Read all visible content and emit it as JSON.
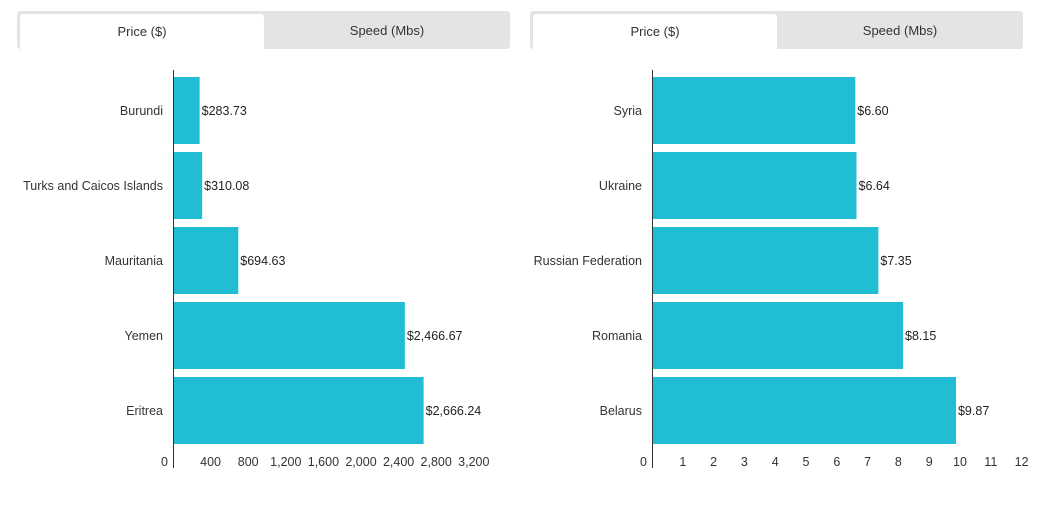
{
  "colors": {
    "bar": "#21bdd4",
    "axis": "#333333",
    "tab_bg": "#e4e4e4",
    "tab_active_bg": "#ffffff"
  },
  "charts": [
    {
      "tabs": [
        {
          "label": "Price ($)",
          "active": true
        },
        {
          "label": "Speed (Mbs)",
          "active": false
        }
      ]
    },
    {
      "tabs": [
        {
          "label": "Price ($)",
          "active": true
        },
        {
          "label": "Speed (Mbs)",
          "active": false
        }
      ]
    }
  ],
  "chart_data": [
    {
      "type": "bar",
      "orientation": "horizontal",
      "categories": [
        "Burundi",
        "Turks and Caicos Islands",
        "Mauritania",
        "Yemen",
        "Eritrea"
      ],
      "values": [
        283.73,
        310.08,
        694.63,
        2466.67,
        2666.24
      ],
      "value_labels": [
        "$283.73",
        "$310.08",
        "$694.63",
        "$2,466.67",
        "$2,666.24"
      ],
      "xlim": [
        0,
        3200
      ],
      "xticks": [
        0,
        400,
        800,
        1200,
        1600,
        2000,
        2400,
        2800,
        3200
      ],
      "xtick_labels": [
        "0",
        "400",
        "800",
        "1,200",
        "1,600",
        "2,000",
        "2,400",
        "2,800",
        "3,200"
      ],
      "title": "",
      "xlabel": "",
      "ylabel": ""
    },
    {
      "type": "bar",
      "orientation": "horizontal",
      "categories": [
        "Syria",
        "Ukraine",
        "Russian Federation",
        "Romania",
        "Belarus"
      ],
      "values": [
        6.6,
        6.64,
        7.35,
        8.15,
        9.87
      ],
      "value_labels": [
        "$6.60",
        "$6.64",
        "$7.35",
        "$8.15",
        "$9.87"
      ],
      "xlim": [
        0,
        12
      ],
      "xticks": [
        0,
        1,
        2,
        3,
        4,
        5,
        6,
        7,
        8,
        9,
        10,
        11,
        12
      ],
      "xtick_labels": [
        "0",
        "1",
        "2",
        "3",
        "4",
        "5",
        "6",
        "7",
        "8",
        "9",
        "10",
        "11",
        "12"
      ],
      "title": "",
      "xlabel": "",
      "ylabel": ""
    }
  ]
}
